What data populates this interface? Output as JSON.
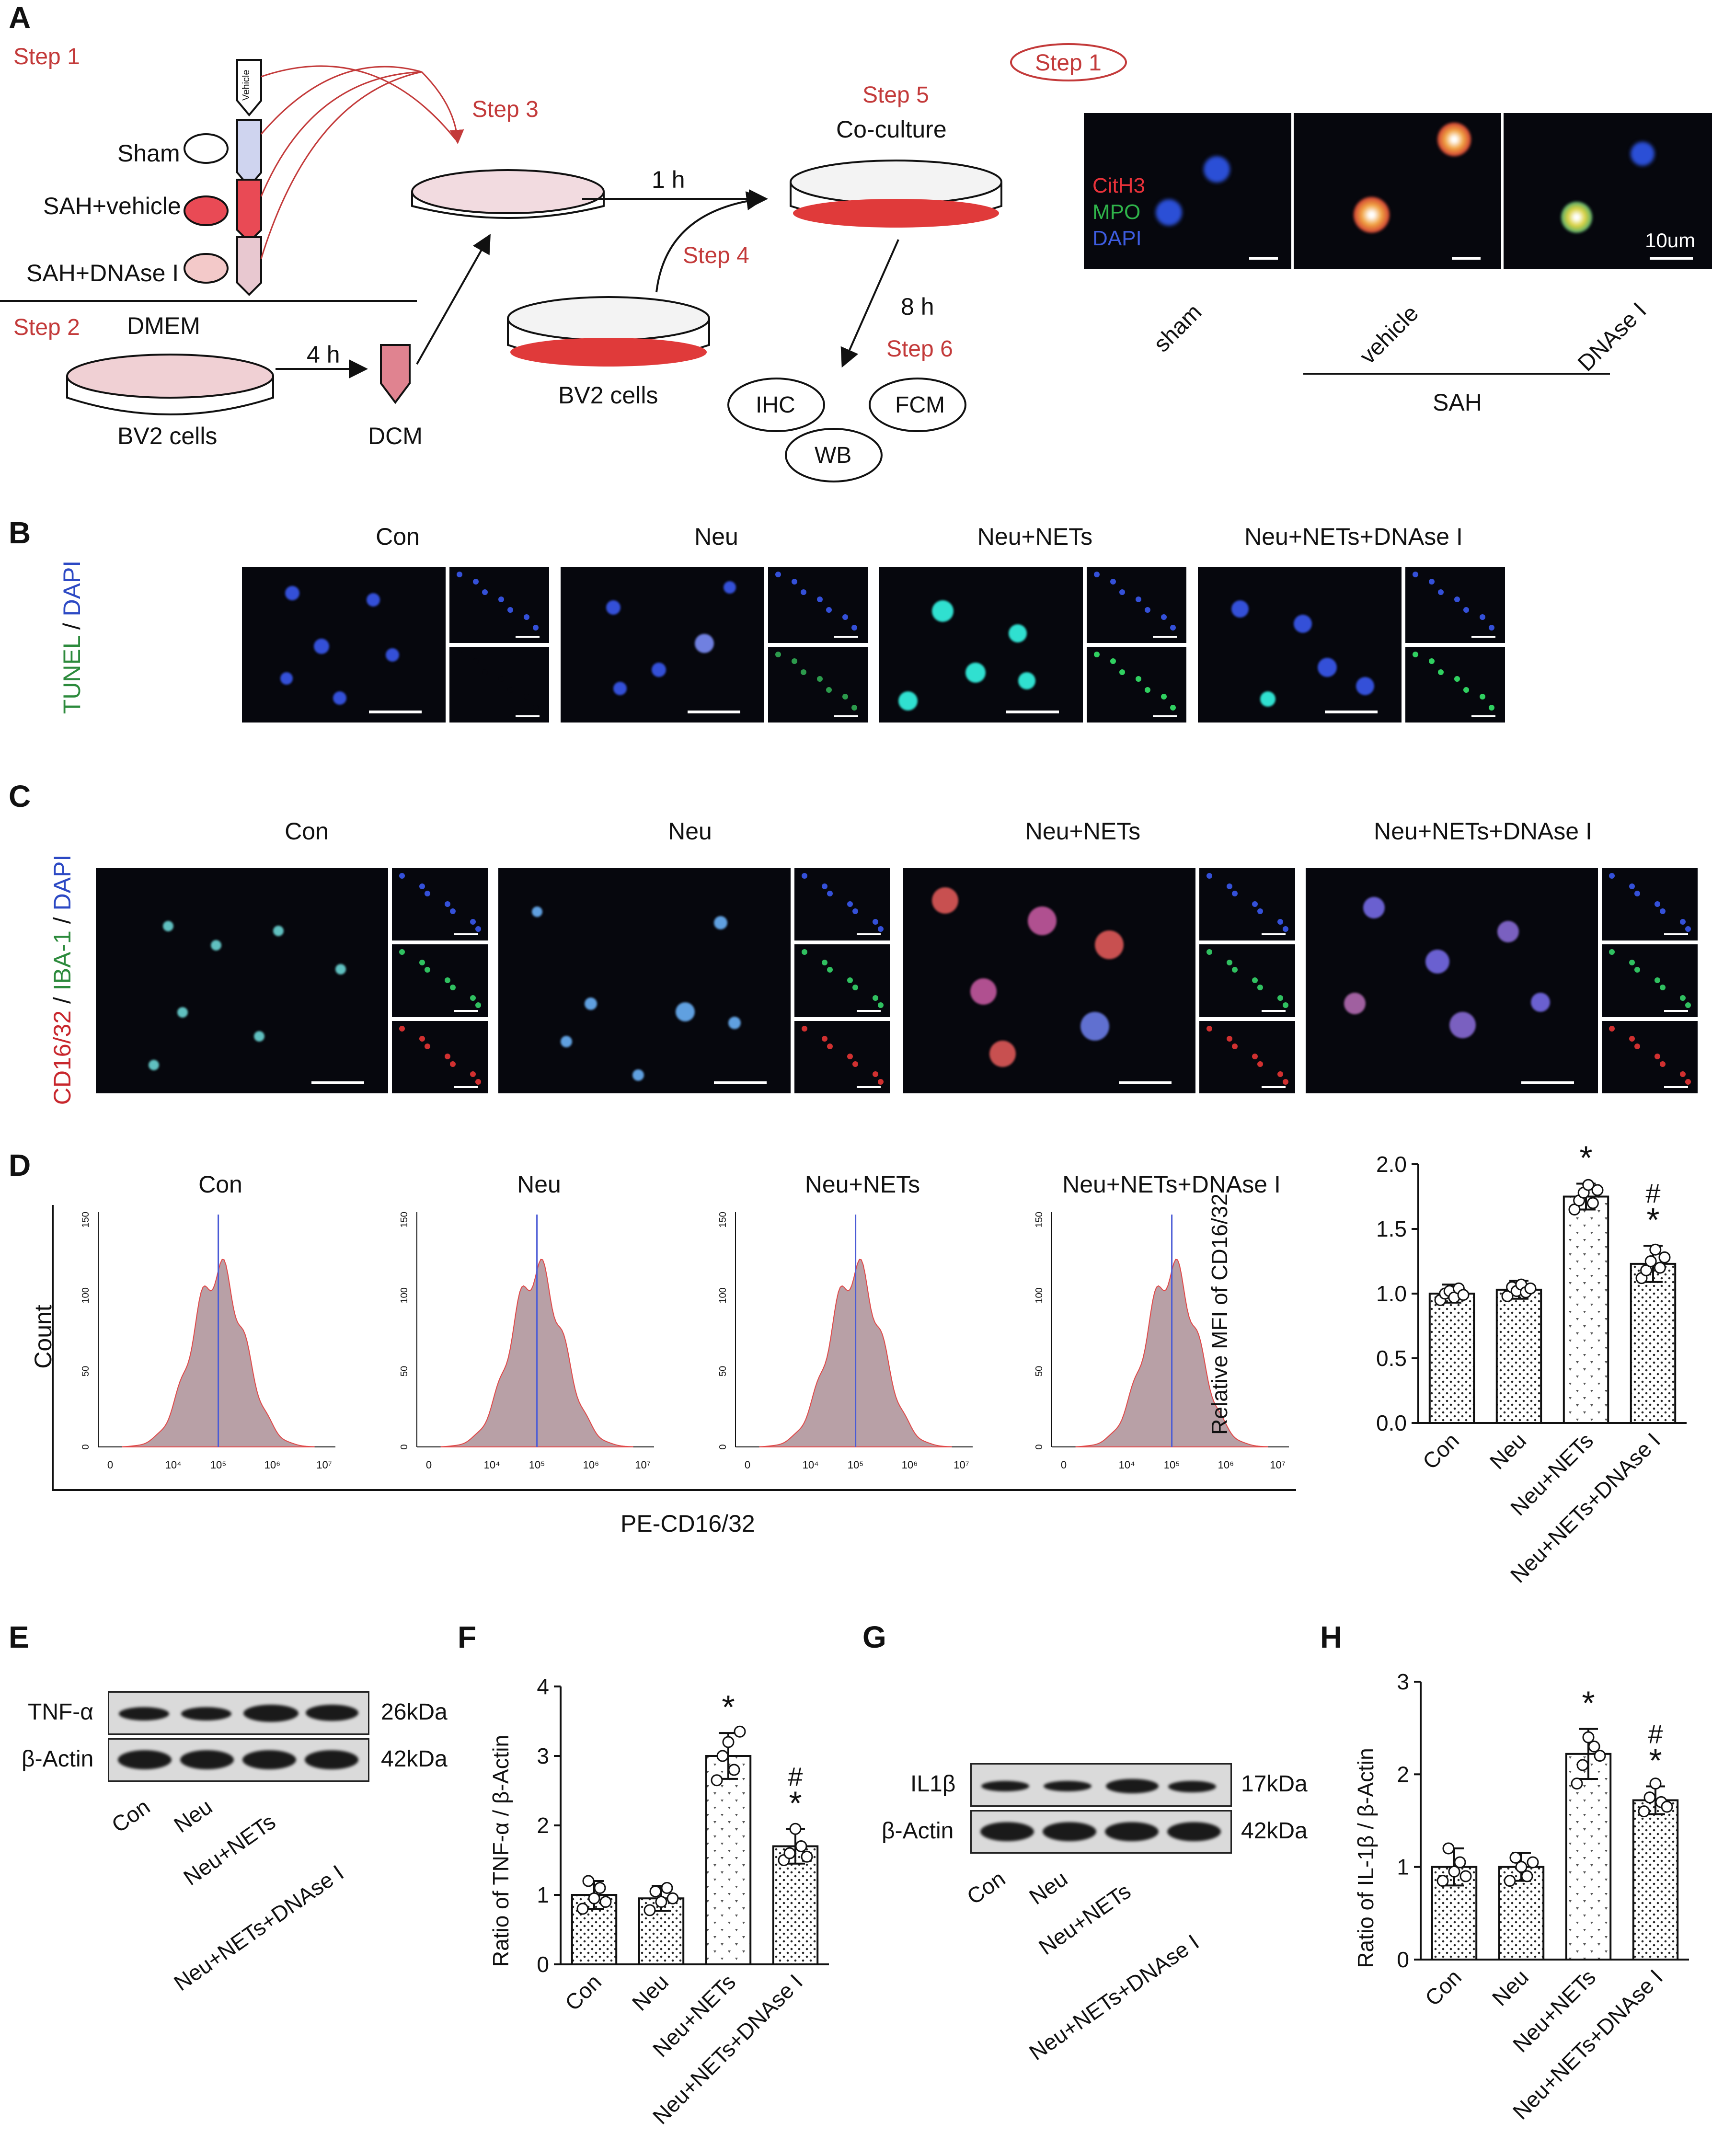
{
  "panel_labels": [
    "A",
    "B",
    "C",
    "D",
    "E",
    "F",
    "G",
    "H"
  ],
  "panelA": {
    "step1": "Step 1",
    "step2": "Step 2",
    "step3": "Step 3",
    "step4": "Step 4",
    "step5": "Step 5",
    "step6": "Step 6",
    "vehicle_tube": "Vehicle",
    "groups": [
      "Sham",
      "SAH+vehicle",
      "SAH+DNAse I"
    ],
    "dmem": "DMEM",
    "bv2_left": "BV2 cells",
    "bv2_mid": "BV2 cells",
    "dcm": "DCM",
    "time_4h": "4 h",
    "time_1h": "1 h",
    "time_8h": "8 h",
    "coculture": "Co-culture",
    "assays": [
      "IHC",
      "FCM",
      "WB"
    ],
    "micro_step1": "Step 1",
    "stain_labels": [
      {
        "text": "CitH3",
        "color": "#e8323a"
      },
      {
        "text": "MPO",
        "color": "#2fb34a"
      },
      {
        "text": "DAPI",
        "color": "#3d5ce0"
      }
    ],
    "scale_text": "10um",
    "micro_groups": [
      "sham",
      "vehicle",
      "DNAse I"
    ],
    "sah_label": "SAH"
  },
  "panelB": {
    "headers": [
      "Con",
      "Neu",
      "Neu+NETs",
      "Neu+NETs+DNAse I"
    ],
    "ylabel_parts": [
      {
        "text": "TUNEL",
        "color": "#2c8a3c"
      },
      {
        "text": " / ",
        "color": "#111111"
      },
      {
        "text": "DAPI",
        "color": "#2c49c4"
      }
    ]
  },
  "panelC": {
    "headers": [
      "Con",
      "Neu",
      "Neu+NETs",
      "Neu+NETs+DNAse I"
    ],
    "ylabel_parts": [
      {
        "text": "CD16/32",
        "color": "#c8272d"
      },
      {
        "text": " / ",
        "color": "#111111"
      },
      {
        "text": "IBA-1",
        "color": "#2c8a3c"
      },
      {
        "text": " / ",
        "color": "#111111"
      },
      {
        "text": "DAPI",
        "color": "#2c49c4"
      }
    ]
  },
  "panelD": {
    "headers": [
      "Con",
      "Neu",
      "Neu+NETs",
      "Neu+NETs+DNAse I"
    ],
    "ylabel": "Count",
    "xlabel": "PE-CD16/32",
    "y_ticks": [
      "0",
      "50",
      "100",
      "150"
    ],
    "x_ticks": [
      "0",
      "10⁴",
      "10⁵",
      "10⁶",
      "10⁷"
    ]
  },
  "panelE": {
    "rows": [
      {
        "label": "TNF-α",
        "size": "26kDa"
      },
      {
        "label": "β-Actin",
        "size": "42kDa"
      }
    ],
    "lanes": [
      "Con",
      "Neu",
      "Neu+NETs",
      "Neu+NETs+DNAse I"
    ]
  },
  "panelG": {
    "rows": [
      {
        "label": "IL1β",
        "size": "17kDa"
      },
      {
        "label": "β-Actin",
        "size": "42kDa"
      }
    ],
    "lanes": [
      "Con",
      "Neu",
      "Neu+NETs",
      "Neu+NETs+DNAse I"
    ]
  },
  "chart_data": [
    {
      "id": "D",
      "type": "bar",
      "ylabel": "Relative MFI of CD16/32",
      "categories": [
        "Con",
        "Neu",
        "Neu+NETs",
        "Neu+NETs+DNAse I"
      ],
      "values": [
        1.0,
        1.03,
        1.75,
        1.23
      ],
      "errors": [
        0.07,
        0.07,
        0.1,
        0.14
      ],
      "points": [
        [
          0.95,
          1.0,
          1.02,
          0.97,
          1.04,
          0.99
        ],
        [
          0.98,
          1.05,
          1.02,
          1.07,
          1.01,
          1.04
        ],
        [
          1.65,
          1.72,
          1.78,
          1.84,
          1.7,
          1.8
        ],
        [
          1.12,
          1.18,
          1.25,
          1.34,
          1.2,
          1.28
        ]
      ],
      "annotations": [
        "",
        "",
        "*",
        "#\n*"
      ],
      "ylim": [
        0,
        2.0
      ],
      "yticks": [
        "0.0",
        "0.5",
        "1.0",
        "1.5",
        "2.0"
      ],
      "patterns": [
        "dots",
        "dots",
        "tri",
        "dots"
      ]
    },
    {
      "id": "F",
      "type": "bar",
      "ylabel": "Ratio of TNF-α / β-Actin",
      "categories": [
        "Con",
        "Neu",
        "Neu+NETs",
        "Neu+NETs+DNAse I"
      ],
      "values": [
        1.0,
        0.95,
        3.0,
        1.7
      ],
      "errors": [
        0.2,
        0.18,
        0.33,
        0.25
      ],
      "points": [
        [
          0.8,
          1.2,
          0.95,
          1.1,
          0.9
        ],
        [
          0.78,
          1.05,
          0.9,
          1.1,
          0.95
        ],
        [
          2.65,
          3.0,
          3.2,
          2.8,
          3.35
        ],
        [
          1.5,
          1.6,
          1.95,
          1.7,
          1.55
        ]
      ],
      "annotations": [
        "",
        "",
        "*",
        "#\n*"
      ],
      "ylim": [
        0,
        4
      ],
      "yticks": [
        "0",
        "1",
        "2",
        "3",
        "4"
      ],
      "patterns": [
        "dots",
        "dots",
        "tri",
        "dots"
      ]
    },
    {
      "id": "H",
      "type": "bar",
      "ylabel": "Ratio of IL-1β / β-Actin",
      "categories": [
        "Con",
        "Neu",
        "Neu+NETs",
        "Neu+NETs+DNAse I"
      ],
      "values": [
        1.0,
        1.0,
        2.22,
        1.72
      ],
      "errors": [
        0.2,
        0.15,
        0.27,
        0.15
      ],
      "points": [
        [
          0.85,
          1.2,
          0.95,
          1.05,
          0.9
        ],
        [
          0.85,
          1.1,
          1.0,
          0.9,
          1.05
        ],
        [
          1.9,
          2.1,
          2.4,
          2.3,
          2.2
        ],
        [
          1.6,
          1.75,
          1.9,
          1.7,
          1.65
        ]
      ],
      "annotations": [
        "",
        "",
        "*",
        "#\n*"
      ],
      "ylim": [
        0,
        3
      ],
      "yticks": [
        "0",
        "1",
        "2",
        "3"
      ],
      "patterns": [
        "dots",
        "dots",
        "tri",
        "dots"
      ]
    }
  ]
}
